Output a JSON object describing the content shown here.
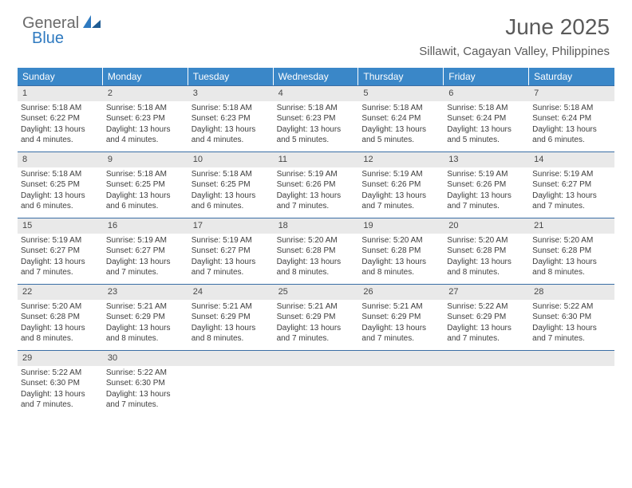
{
  "brand": {
    "text1": "General",
    "text2": "Blue"
  },
  "title": "June 2025",
  "location": "Sillawit, Cagayan Valley, Philippines",
  "colors": {
    "header_bg": "#3a87c8",
    "header_text": "#ffffff",
    "daynum_bg": "#e9e9e9",
    "rule": "#3a6ea5",
    "brand_gray": "#6a6a6a",
    "brand_blue": "#2f7ac0",
    "body_text": "#3d3d3d"
  },
  "weekdays": [
    "Sunday",
    "Monday",
    "Tuesday",
    "Wednesday",
    "Thursday",
    "Friday",
    "Saturday"
  ],
  "weeks": [
    [
      {
        "n": "1",
        "sr": "Sunrise: 5:18 AM",
        "ss": "Sunset: 6:22 PM",
        "d1": "Daylight: 13 hours",
        "d2": "and 4 minutes."
      },
      {
        "n": "2",
        "sr": "Sunrise: 5:18 AM",
        "ss": "Sunset: 6:23 PM",
        "d1": "Daylight: 13 hours",
        "d2": "and 4 minutes."
      },
      {
        "n": "3",
        "sr": "Sunrise: 5:18 AM",
        "ss": "Sunset: 6:23 PM",
        "d1": "Daylight: 13 hours",
        "d2": "and 4 minutes."
      },
      {
        "n": "4",
        "sr": "Sunrise: 5:18 AM",
        "ss": "Sunset: 6:23 PM",
        "d1": "Daylight: 13 hours",
        "d2": "and 5 minutes."
      },
      {
        "n": "5",
        "sr": "Sunrise: 5:18 AM",
        "ss": "Sunset: 6:24 PM",
        "d1": "Daylight: 13 hours",
        "d2": "and 5 minutes."
      },
      {
        "n": "6",
        "sr": "Sunrise: 5:18 AM",
        "ss": "Sunset: 6:24 PM",
        "d1": "Daylight: 13 hours",
        "d2": "and 5 minutes."
      },
      {
        "n": "7",
        "sr": "Sunrise: 5:18 AM",
        "ss": "Sunset: 6:24 PM",
        "d1": "Daylight: 13 hours",
        "d2": "and 6 minutes."
      }
    ],
    [
      {
        "n": "8",
        "sr": "Sunrise: 5:18 AM",
        "ss": "Sunset: 6:25 PM",
        "d1": "Daylight: 13 hours",
        "d2": "and 6 minutes."
      },
      {
        "n": "9",
        "sr": "Sunrise: 5:18 AM",
        "ss": "Sunset: 6:25 PM",
        "d1": "Daylight: 13 hours",
        "d2": "and 6 minutes."
      },
      {
        "n": "10",
        "sr": "Sunrise: 5:18 AM",
        "ss": "Sunset: 6:25 PM",
        "d1": "Daylight: 13 hours",
        "d2": "and 6 minutes."
      },
      {
        "n": "11",
        "sr": "Sunrise: 5:19 AM",
        "ss": "Sunset: 6:26 PM",
        "d1": "Daylight: 13 hours",
        "d2": "and 7 minutes."
      },
      {
        "n": "12",
        "sr": "Sunrise: 5:19 AM",
        "ss": "Sunset: 6:26 PM",
        "d1": "Daylight: 13 hours",
        "d2": "and 7 minutes."
      },
      {
        "n": "13",
        "sr": "Sunrise: 5:19 AM",
        "ss": "Sunset: 6:26 PM",
        "d1": "Daylight: 13 hours",
        "d2": "and 7 minutes."
      },
      {
        "n": "14",
        "sr": "Sunrise: 5:19 AM",
        "ss": "Sunset: 6:27 PM",
        "d1": "Daylight: 13 hours",
        "d2": "and 7 minutes."
      }
    ],
    [
      {
        "n": "15",
        "sr": "Sunrise: 5:19 AM",
        "ss": "Sunset: 6:27 PM",
        "d1": "Daylight: 13 hours",
        "d2": "and 7 minutes."
      },
      {
        "n": "16",
        "sr": "Sunrise: 5:19 AM",
        "ss": "Sunset: 6:27 PM",
        "d1": "Daylight: 13 hours",
        "d2": "and 7 minutes."
      },
      {
        "n": "17",
        "sr": "Sunrise: 5:19 AM",
        "ss": "Sunset: 6:27 PM",
        "d1": "Daylight: 13 hours",
        "d2": "and 7 minutes."
      },
      {
        "n": "18",
        "sr": "Sunrise: 5:20 AM",
        "ss": "Sunset: 6:28 PM",
        "d1": "Daylight: 13 hours",
        "d2": "and 8 minutes."
      },
      {
        "n": "19",
        "sr": "Sunrise: 5:20 AM",
        "ss": "Sunset: 6:28 PM",
        "d1": "Daylight: 13 hours",
        "d2": "and 8 minutes."
      },
      {
        "n": "20",
        "sr": "Sunrise: 5:20 AM",
        "ss": "Sunset: 6:28 PM",
        "d1": "Daylight: 13 hours",
        "d2": "and 8 minutes."
      },
      {
        "n": "21",
        "sr": "Sunrise: 5:20 AM",
        "ss": "Sunset: 6:28 PM",
        "d1": "Daylight: 13 hours",
        "d2": "and 8 minutes."
      }
    ],
    [
      {
        "n": "22",
        "sr": "Sunrise: 5:20 AM",
        "ss": "Sunset: 6:28 PM",
        "d1": "Daylight: 13 hours",
        "d2": "and 8 minutes."
      },
      {
        "n": "23",
        "sr": "Sunrise: 5:21 AM",
        "ss": "Sunset: 6:29 PM",
        "d1": "Daylight: 13 hours",
        "d2": "and 8 minutes."
      },
      {
        "n": "24",
        "sr": "Sunrise: 5:21 AM",
        "ss": "Sunset: 6:29 PM",
        "d1": "Daylight: 13 hours",
        "d2": "and 8 minutes."
      },
      {
        "n": "25",
        "sr": "Sunrise: 5:21 AM",
        "ss": "Sunset: 6:29 PM",
        "d1": "Daylight: 13 hours",
        "d2": "and 7 minutes."
      },
      {
        "n": "26",
        "sr": "Sunrise: 5:21 AM",
        "ss": "Sunset: 6:29 PM",
        "d1": "Daylight: 13 hours",
        "d2": "and 7 minutes."
      },
      {
        "n": "27",
        "sr": "Sunrise: 5:22 AM",
        "ss": "Sunset: 6:29 PM",
        "d1": "Daylight: 13 hours",
        "d2": "and 7 minutes."
      },
      {
        "n": "28",
        "sr": "Sunrise: 5:22 AM",
        "ss": "Sunset: 6:30 PM",
        "d1": "Daylight: 13 hours",
        "d2": "and 7 minutes."
      }
    ],
    [
      {
        "n": "29",
        "sr": "Sunrise: 5:22 AM",
        "ss": "Sunset: 6:30 PM",
        "d1": "Daylight: 13 hours",
        "d2": "and 7 minutes."
      },
      {
        "n": "30",
        "sr": "Sunrise: 5:22 AM",
        "ss": "Sunset: 6:30 PM",
        "d1": "Daylight: 13 hours",
        "d2": "and 7 minutes."
      },
      {
        "n": "",
        "sr": "",
        "ss": "",
        "d1": "",
        "d2": ""
      },
      {
        "n": "",
        "sr": "",
        "ss": "",
        "d1": "",
        "d2": ""
      },
      {
        "n": "",
        "sr": "",
        "ss": "",
        "d1": "",
        "d2": ""
      },
      {
        "n": "",
        "sr": "",
        "ss": "",
        "d1": "",
        "d2": ""
      },
      {
        "n": "",
        "sr": "",
        "ss": "",
        "d1": "",
        "d2": ""
      }
    ]
  ]
}
